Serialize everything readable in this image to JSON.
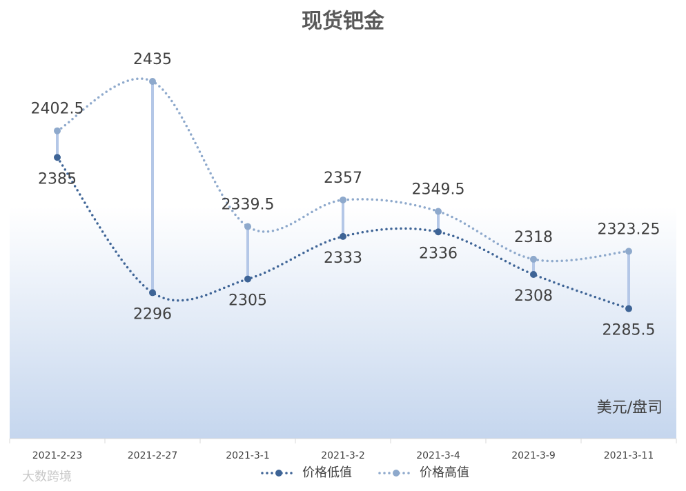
{
  "chart_data": {
    "type": "line",
    "title": "现货钯金",
    "unit_label": "美元/盘司",
    "watermark": "大数跨境",
    "categories": [
      "2021-2-23",
      "2021-2-27",
      "2021-3-1",
      "2021-3-2",
      "2021-3-4",
      "2021-3-9",
      "2021-3-11"
    ],
    "series": [
      {
        "name": "价格低值",
        "color": "#3e6496",
        "values": [
          2385,
          2296,
          2305,
          2333,
          2336,
          2308,
          2285.5
        ]
      },
      {
        "name": "价格高值",
        "color": "#8ea9cc",
        "values": [
          2402.5,
          2435,
          2339.5,
          2357,
          2349.5,
          2318,
          2323.25
        ]
      }
    ],
    "ylim": [
      2200,
      2450
    ],
    "high_low_lines": true,
    "smooth": true,
    "legend": "bottom"
  }
}
